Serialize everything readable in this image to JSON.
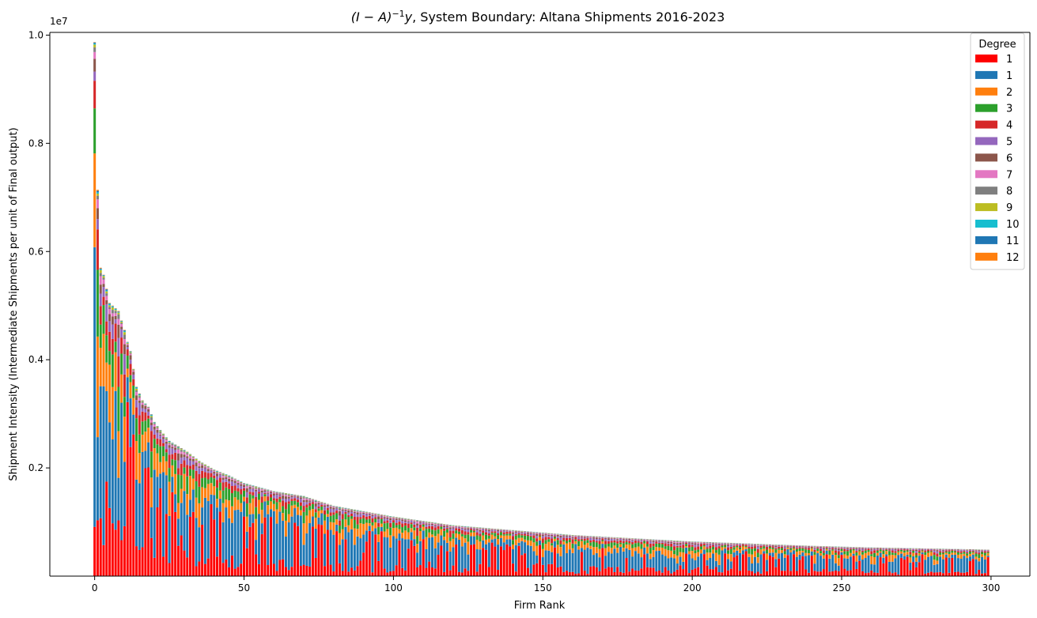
{
  "chart_data": {
    "type": "bar",
    "stacked": true,
    "title_prefix": "(I − A)",
    "title_sup": "−1",
    "title_var": "y",
    "title_rest": ", System Boundary: Altana Shipments 2016-2023",
    "xlabel": "Firm Rank",
    "ylabel": "Shipment Intensity (Intermediate Shipments per unit of Final output)",
    "offset_text": "1e7",
    "xlim": [
      -15,
      313
    ],
    "ylim": [
      0,
      10050000
    ],
    "x_ticks": [
      {
        "value": 0,
        "label": "0"
      },
      {
        "value": 50,
        "label": "50"
      },
      {
        "value": 100,
        "label": "100"
      },
      {
        "value": 150,
        "label": "150"
      },
      {
        "value": 200,
        "label": "200"
      },
      {
        "value": 250,
        "label": "250"
      },
      {
        "value": 300,
        "label": "300"
      }
    ],
    "y_ticks": [
      {
        "value": 2000000,
        "label": "0.2"
      },
      {
        "value": 4000000,
        "label": "0.4"
      },
      {
        "value": 6000000,
        "label": "0.6"
      },
      {
        "value": 8000000,
        "label": "0.8"
      },
      {
        "value": 10000000,
        "label": "1.0"
      }
    ],
    "n_firms": 300,
    "totals_anchor": {
      "x": [
        0,
        1,
        2,
        3,
        5,
        8,
        10,
        11,
        12,
        14,
        16,
        18,
        20,
        22,
        25,
        28,
        31,
        35,
        40,
        45,
        50,
        60,
        70,
        80,
        90,
        100,
        120,
        140,
        160,
        180,
        200,
        220,
        240,
        260,
        280,
        299
      ],
      "y": [
        9870000,
        7140000,
        5700000,
        5570000,
        5050000,
        4900000,
        4550000,
        4330000,
        4160000,
        3500000,
        3250000,
        3130000,
        2850000,
        2700000,
        2500000,
        2400000,
        2300000,
        2130000,
        1970000,
        1860000,
        1720000,
        1570000,
        1480000,
        1300000,
        1200000,
        1100000,
        940000,
        850000,
        760000,
        700000,
        640000,
        600000,
        560000,
        530000,
        510000,
        490000
      ]
    },
    "legend": {
      "title": "Degree",
      "location": "upper right",
      "entries": [
        {
          "label": "1",
          "color": "#ff0000"
        },
        {
          "label": "1",
          "color": "#1f77b4"
        },
        {
          "label": "2",
          "color": "#ff7f0e"
        },
        {
          "label": "3",
          "color": "#2ca02c"
        },
        {
          "label": "4",
          "color": "#d62728"
        },
        {
          "label": "5",
          "color": "#9467bd"
        },
        {
          "label": "6",
          "color": "#8c564b"
        },
        {
          "label": "7",
          "color": "#e377c2"
        },
        {
          "label": "8",
          "color": "#7f7f7f"
        },
        {
          "label": "9",
          "color": "#bcbd22"
        },
        {
          "label": "10",
          "color": "#17becf"
        },
        {
          "label": "11",
          "color": "#1f77b4"
        },
        {
          "label": "12",
          "color": "#ff7f0e"
        }
      ]
    }
  }
}
